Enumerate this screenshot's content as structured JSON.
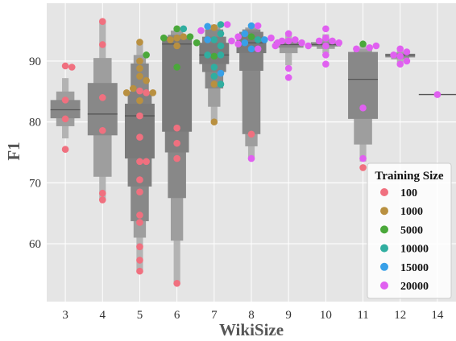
{
  "chart_data": {
    "type": "boxen+swarm",
    "xlabel": "WikiSize",
    "ylabel": "F1",
    "categories": [
      "3",
      "4",
      "5",
      "6",
      "7",
      "8",
      "9",
      "10",
      "11",
      "12",
      "14"
    ],
    "yticks": [
      60,
      70,
      80,
      90
    ],
    "ylim": [
      50.5,
      99.5
    ],
    "grid": true,
    "legend": {
      "title": "Training Size",
      "placement": "lower-right",
      "entries": [
        {
          "label": "100",
          "color": "#f0707f"
        },
        {
          "label": "1000",
          "color": "#b99040"
        },
        {
          "label": "5000",
          "color": "#4aa83a"
        },
        {
          "label": "10000",
          "color": "#30aea0"
        },
        {
          "label": "15000",
          "color": "#38a0e8"
        },
        {
          "label": "20000",
          "color": "#e060f0"
        }
      ]
    },
    "box_color": "#888888",
    "median_color": "#555555",
    "boxen": [
      {
        "category": "3",
        "median": 82.0,
        "levels": [
          [
            77.3,
            87.2
          ],
          [
            79.3,
            85.0
          ],
          [
            80.6,
            83.6
          ]
        ]
      },
      {
        "category": "4",
        "median": 81.3,
        "levels": [
          [
            67.2,
            96.5
          ],
          [
            71.0,
            90.5
          ],
          [
            77.8,
            86.4
          ]
        ]
      },
      {
        "category": "5",
        "median": 81.0,
        "levels": [
          [
            55.5,
            93.1
          ],
          [
            61.0,
            91.0
          ],
          [
            63.7,
            89.6
          ],
          [
            69.4,
            85.0
          ],
          [
            74.0,
            83.0
          ]
        ]
      },
      {
        "category": "6",
        "median": 92.8,
        "levels": [
          [
            53.5,
            95.3
          ],
          [
            60.5,
            95.0
          ],
          [
            67.5,
            94.3
          ],
          [
            75.0,
            94.0
          ],
          [
            78.4,
            93.5
          ]
        ]
      },
      {
        "category": "7",
        "median": 91.0,
        "levels": [
          [
            80.0,
            96.0
          ],
          [
            82.5,
            95.7
          ],
          [
            85.5,
            95.2
          ],
          [
            88.2,
            94.0
          ],
          [
            89.5,
            93.0
          ]
        ]
      },
      {
        "category": "8",
        "median": 93.0,
        "levels": [
          [
            74.0,
            96.0
          ],
          [
            76.0,
            95.5
          ],
          [
            78.0,
            95.2
          ],
          [
            88.4,
            94.8
          ],
          [
            91.3,
            94.0
          ]
        ]
      },
      {
        "category": "9",
        "median": 92.7,
        "levels": [
          [
            89.3,
            94.3
          ],
          [
            91.3,
            93.6
          ],
          [
            92.2,
            93.2
          ]
        ]
      },
      {
        "category": "10",
        "median": 92.7,
        "levels": [
          [
            91.3,
            94.4
          ],
          [
            92.0,
            93.6
          ],
          [
            92.4,
            93.1
          ]
        ]
      },
      {
        "category": "11",
        "median": 87.0,
        "levels": [
          [
            73.5,
            92.5
          ],
          [
            76.3,
            92.0
          ],
          [
            80.5,
            91.5
          ]
        ]
      },
      {
        "category": "12",
        "median": 91.0,
        "levels": [
          [
            89.8,
            91.7
          ],
          [
            90.3,
            91.4
          ],
          [
            90.6,
            91.2
          ]
        ]
      },
      {
        "category": "14",
        "median": 84.5,
        "levels": []
      }
    ],
    "points": [
      {
        "x": "3",
        "y": 89.2,
        "size": "100"
      },
      {
        "x": "3",
        "y": 89.0,
        "size": "100"
      },
      {
        "x": "3",
        "y": 83.6,
        "size": "100"
      },
      {
        "x": "3",
        "y": 80.5,
        "size": "100"
      },
      {
        "x": "3",
        "y": 75.5,
        "size": "100"
      },
      {
        "x": "4",
        "y": 96.5,
        "size": "100"
      },
      {
        "x": "4",
        "y": 92.7,
        "size": "100"
      },
      {
        "x": "4",
        "y": 84.0,
        "size": "100"
      },
      {
        "x": "4",
        "y": 78.6,
        "size": "100"
      },
      {
        "x": "4",
        "y": 68.3,
        "size": "100"
      },
      {
        "x": "4",
        "y": 67.2,
        "size": "100"
      },
      {
        "x": "5",
        "y": 85.1,
        "size": "100"
      },
      {
        "x": "5",
        "y": 84.8,
        "size": "100"
      },
      {
        "x": "5",
        "y": 81.0,
        "size": "100"
      },
      {
        "x": "5",
        "y": 77.5,
        "size": "100"
      },
      {
        "x": "5",
        "y": 73.5,
        "size": "100"
      },
      {
        "x": "5",
        "y": 73.5,
        "size": "100"
      },
      {
        "x": "5",
        "y": 70.5,
        "size": "100"
      },
      {
        "x": "5",
        "y": 68.5,
        "size": "100"
      },
      {
        "x": "5",
        "y": 64.7,
        "size": "100"
      },
      {
        "x": "5",
        "y": 63.5,
        "size": "100"
      },
      {
        "x": "5",
        "y": 59.5,
        "size": "100"
      },
      {
        "x": "5",
        "y": 57.3,
        "size": "100"
      },
      {
        "x": "5",
        "y": 55.5,
        "size": "100"
      },
      {
        "x": "5",
        "y": 93.1,
        "size": "1000"
      },
      {
        "x": "5",
        "y": 90.0,
        "size": "1000"
      },
      {
        "x": "5",
        "y": 88.8,
        "size": "1000"
      },
      {
        "x": "5",
        "y": 87.5,
        "size": "1000"
      },
      {
        "x": "5",
        "y": 86.8,
        "size": "1000"
      },
      {
        "x": "5",
        "y": 85.5,
        "size": "1000"
      },
      {
        "x": "5",
        "y": 84.8,
        "size": "1000"
      },
      {
        "x": "5",
        "y": 84.8,
        "size": "1000"
      },
      {
        "x": "5",
        "y": 83.5,
        "size": "1000"
      },
      {
        "x": "5",
        "y": 91.0,
        "size": "5000"
      },
      {
        "x": "6",
        "y": 79.0,
        "size": "100"
      },
      {
        "x": "6",
        "y": 76.5,
        "size": "100"
      },
      {
        "x": "6",
        "y": 74.0,
        "size": "100"
      },
      {
        "x": "6",
        "y": 53.5,
        "size": "100"
      },
      {
        "x": "6",
        "y": 93.8,
        "size": "1000"
      },
      {
        "x": "6",
        "y": 92.5,
        "size": "1000"
      },
      {
        "x": "6",
        "y": 94.0,
        "size": "1000"
      },
      {
        "x": "6",
        "y": 93.5,
        "size": "1000"
      },
      {
        "x": "6",
        "y": 94.0,
        "size": "5000"
      },
      {
        "x": "6",
        "y": 93.8,
        "size": "5000"
      },
      {
        "x": "6",
        "y": 89.0,
        "size": "5000"
      },
      {
        "x": "6",
        "y": 95.3,
        "size": "5000"
      },
      {
        "x": "6",
        "y": 93.0,
        "size": "5000"
      },
      {
        "x": "6",
        "y": 95.3,
        "size": "10000"
      },
      {
        "x": "7",
        "y": 80.0,
        "size": "1000"
      },
      {
        "x": "7",
        "y": 86.2,
        "size": "1000"
      },
      {
        "x": "7",
        "y": 95.5,
        "size": "1000"
      },
      {
        "x": "7",
        "y": 90.8,
        "size": "5000"
      },
      {
        "x": "7",
        "y": 96.0,
        "size": "10000"
      },
      {
        "x": "7",
        "y": 94.5,
        "size": "10000"
      },
      {
        "x": "7",
        "y": 93.5,
        "size": "10000"
      },
      {
        "x": "7",
        "y": 92.5,
        "size": "10000"
      },
      {
        "x": "7",
        "y": 91.0,
        "size": "10000"
      },
      {
        "x": "7",
        "y": 91.0,
        "size": "10000"
      },
      {
        "x": "7",
        "y": 89.0,
        "size": "10000"
      },
      {
        "x": "7",
        "y": 87.5,
        "size": "10000"
      },
      {
        "x": "7",
        "y": 86.2,
        "size": "10000"
      },
      {
        "x": "7",
        "y": 95.7,
        "size": "15000"
      },
      {
        "x": "7",
        "y": 93.5,
        "size": "15000"
      },
      {
        "x": "7",
        "y": 88.0,
        "size": "15000"
      },
      {
        "x": "7",
        "y": 96.0,
        "size": "20000"
      },
      {
        "x": "7",
        "y": 95.0,
        "size": "20000"
      },
      {
        "x": "8",
        "y": 78.0,
        "size": "100"
      },
      {
        "x": "8",
        "y": 94.0,
        "size": "5000"
      },
      {
        "x": "8",
        "y": 93.5,
        "size": "10000"
      },
      {
        "x": "8",
        "y": 95.8,
        "size": "15000"
      },
      {
        "x": "8",
        "y": 94.5,
        "size": "15000"
      },
      {
        "x": "8",
        "y": 93.5,
        "size": "15000"
      },
      {
        "x": "8",
        "y": 93.0,
        "size": "15000"
      },
      {
        "x": "8",
        "y": 92.0,
        "size": "15000"
      },
      {
        "x": "8",
        "y": 95.8,
        "size": "20000"
      },
      {
        "x": "8",
        "y": 94.0,
        "size": "20000"
      },
      {
        "x": "8",
        "y": 93.8,
        "size": "20000"
      },
      {
        "x": "8",
        "y": 93.3,
        "size": "20000"
      },
      {
        "x": "8",
        "y": 93.0,
        "size": "20000"
      },
      {
        "x": "8",
        "y": 92.8,
        "size": "20000"
      },
      {
        "x": "8",
        "y": 92.0,
        "size": "20000"
      },
      {
        "x": "8",
        "y": 74.0,
        "size": "20000"
      },
      {
        "x": "9",
        "y": 94.5,
        "size": "20000"
      },
      {
        "x": "9",
        "y": 93.5,
        "size": "20000"
      },
      {
        "x": "9",
        "y": 93.3,
        "size": "20000"
      },
      {
        "x": "9",
        "y": 93.3,
        "size": "20000"
      },
      {
        "x": "9",
        "y": 93.0,
        "size": "20000"
      },
      {
        "x": "9",
        "y": 92.5,
        "size": "20000"
      },
      {
        "x": "9",
        "y": 92.5,
        "size": "20000"
      },
      {
        "x": "9",
        "y": 88.8,
        "size": "20000"
      },
      {
        "x": "9",
        "y": 87.3,
        "size": "20000"
      },
      {
        "x": "10",
        "y": 95.3,
        "size": "20000"
      },
      {
        "x": "10",
        "y": 93.8,
        "size": "20000"
      },
      {
        "x": "10",
        "y": 93.3,
        "size": "20000"
      },
      {
        "x": "10",
        "y": 93.3,
        "size": "20000"
      },
      {
        "x": "10",
        "y": 93.0,
        "size": "20000"
      },
      {
        "x": "10",
        "y": 92.5,
        "size": "20000"
      },
      {
        "x": "10",
        "y": 91.0,
        "size": "20000"
      },
      {
        "x": "10",
        "y": 89.5,
        "size": "20000"
      },
      {
        "x": "11",
        "y": 72.5,
        "size": "100"
      },
      {
        "x": "11",
        "y": 92.8,
        "size": "5000"
      },
      {
        "x": "11",
        "y": 92.2,
        "size": "20000"
      },
      {
        "x": "11",
        "y": 92.0,
        "size": "20000"
      },
      {
        "x": "11",
        "y": 92.5,
        "size": "20000"
      },
      {
        "x": "11",
        "y": 82.3,
        "size": "20000"
      },
      {
        "x": "11",
        "y": 74.0,
        "size": "20000"
      },
      {
        "x": "12",
        "y": 92.0,
        "size": "20000"
      },
      {
        "x": "12",
        "y": 91.5,
        "size": "20000"
      },
      {
        "x": "12",
        "y": 91.0,
        "size": "20000"
      },
      {
        "x": "12",
        "y": 90.8,
        "size": "20000"
      },
      {
        "x": "12",
        "y": 90.0,
        "size": "20000"
      },
      {
        "x": "12",
        "y": 89.5,
        "size": "20000"
      },
      {
        "x": "14",
        "y": 84.5,
        "size": "20000"
      }
    ]
  }
}
